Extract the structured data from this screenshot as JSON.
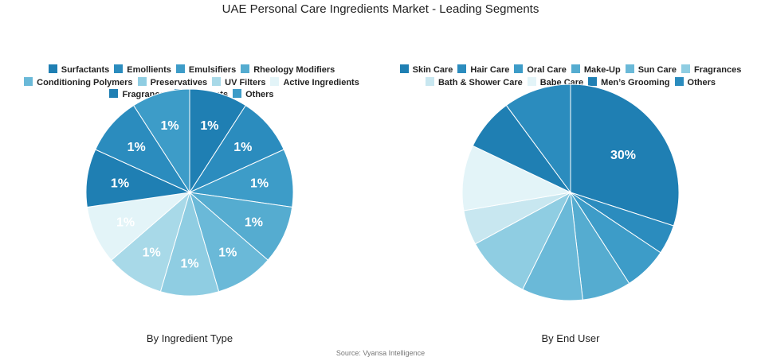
{
  "title": "UAE Personal Care Ingredients Market - Leading Segments",
  "source": "Source: Vyansa Intelligence",
  "chart_data": [
    {
      "type": "pie",
      "caption": "By Ingredient Type",
      "labels": [
        "Surfactants",
        "Emollients",
        "Emulsifiers",
        "Rheology Modifiers",
        "Conditioning Polymers",
        "Preservatives",
        "UV Filters",
        "Active Ingredients",
        "Fragrances",
        "Colorants",
        "Others"
      ],
      "values": [
        1,
        1,
        1,
        1,
        1,
        1,
        1,
        1,
        1,
        1,
        1
      ],
      "data_labels": [
        "1%",
        "1%",
        "1%",
        "1%",
        "1%",
        "1%",
        "1%",
        "1%",
        "1%",
        "1%",
        "1%"
      ],
      "colors": [
        "#1f7fb3",
        "#2b8cbe",
        "#3d9cc8",
        "#55acd0",
        "#6ab9d8",
        "#8fcde2",
        "#a8d9e8",
        "#e3f4f8",
        "#1f7fb3",
        "#2b8cbe",
        "#3d9cc8"
      ],
      "start_angle_deg": 0,
      "direction": "clockwise",
      "legend_position": "top"
    },
    {
      "type": "pie",
      "caption": "By End User",
      "labels": [
        "Skin Care",
        "Hair Care",
        "Oral Care",
        "Make-Up",
        "Sun Care",
        "Fragrances",
        "Bath & Shower Care",
        "Babe Care",
        "Men’s Grooming",
        "Others"
      ],
      "values": [
        30,
        4.4,
        6.5,
        7.3,
        9.1,
        9.8,
        5.2,
        9.8,
        7.8,
        10.1
      ],
      "data_labels": [
        "30%",
        "",
        "",
        "",
        "",
        "",
        "",
        "",
        "",
        ""
      ],
      "colors": [
        "#1f7fb3",
        "#2b8cbe",
        "#3d9cc8",
        "#55acd0",
        "#6ab9d8",
        "#8fcde2",
        "#c8e7f0",
        "#e3f4f8",
        "#1f7fb3",
        "#2b8cbe"
      ],
      "start_angle_deg": 0,
      "direction": "clockwise",
      "legend_position": "top"
    }
  ]
}
